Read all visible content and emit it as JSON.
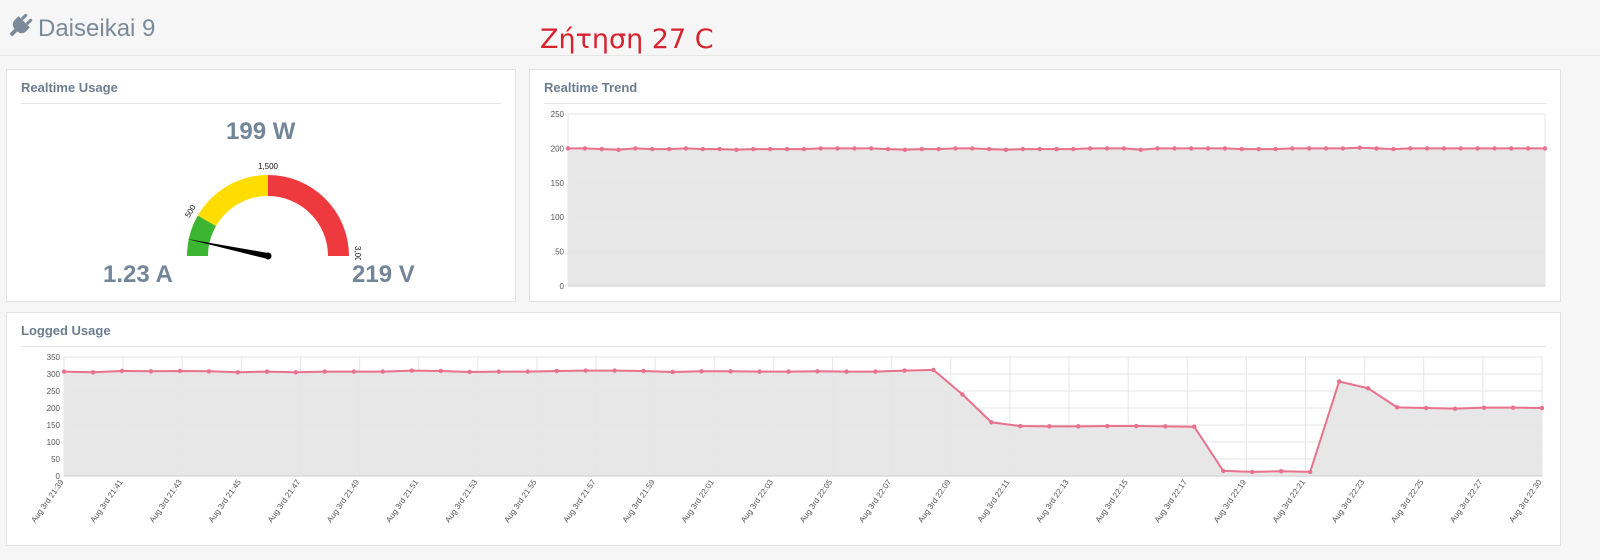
{
  "header": {
    "title": "Daiseikai 9",
    "icon": "plug-icon"
  },
  "annotation": "Ζήτηση 27 C",
  "realtime_usage": {
    "title": "Realtime Usage",
    "power": "199 W",
    "current": "1.23 A",
    "voltage": "219 V",
    "gauge": {
      "min": 0,
      "max": 3000,
      "value": 199,
      "labels": [
        "500",
        "1,500",
        "3,000"
      ],
      "bands": [
        {
          "from": 0,
          "to": 500,
          "color": "#3cb531"
        },
        {
          "from": 500,
          "to": 1500,
          "color": "#ffdd00"
        },
        {
          "from": 1500,
          "to": 3000,
          "color": "#ee3a3f"
        }
      ]
    }
  },
  "realtime_trend": {
    "title": "Realtime Trend"
  },
  "logged_usage": {
    "title": "Logged Usage"
  },
  "colors": {
    "line": "#e8718d",
    "fill": "#e4e4e4",
    "grid": "#e6e6e6",
    "text": "#6b7d8f"
  },
  "chart_data": [
    {
      "type": "area",
      "ylim": [
        0,
        250
      ],
      "y_ticks": [
        "0",
        "50",
        "100",
        "150",
        "200",
        "250"
      ],
      "grid": true,
      "values": [
        200,
        200,
        199,
        198,
        200,
        199,
        199,
        200,
        199,
        199,
        198,
        199,
        199,
        199,
        199,
        200,
        200,
        200,
        200,
        199,
        198,
        199,
        199,
        200,
        200,
        199,
        198,
        199,
        199,
        199,
        199,
        200,
        200,
        200,
        198,
        200,
        200,
        200,
        200,
        200,
        199,
        199,
        199,
        200,
        200,
        200,
        200,
        201,
        200,
        199,
        200,
        200,
        200,
        200,
        200,
        200,
        200,
        200,
        200
      ]
    },
    {
      "type": "area",
      "ylim": [
        0,
        350
      ],
      "y_ticks": [
        "0",
        "50",
        "100",
        "150",
        "200",
        "250",
        "300",
        "350"
      ],
      "grid": true,
      "x_tick_labels": [
        "Aug 3rd 21:39",
        "Aug 3rd 21:41",
        "Aug 3rd 21:43",
        "Aug 3rd 21:45",
        "Aug 3rd 21:47",
        "Aug 3rd 21:49",
        "Aug 3rd 21:51",
        "Aug 3rd 21:53",
        "Aug 3rd 21:55",
        "Aug 3rd 21:57",
        "Aug 3rd 21:59",
        "Aug 3rd 22:01",
        "Aug 3rd 22:03",
        "Aug 3rd 22:05",
        "Aug 3rd 22:07",
        "Aug 3rd 22:09",
        "Aug 3rd 22:11",
        "Aug 3rd 22:13",
        "Aug 3rd 22:15",
        "Aug 3rd 22:17",
        "Aug 3rd 22:19",
        "Aug 3rd 22:21",
        "Aug 3rd 22:23",
        "Aug 3rd 22:25",
        "Aug 3rd 22:27",
        "Aug 3rd 22:30"
      ],
      "values": [
        307,
        305,
        309,
        308,
        309,
        308,
        305,
        307,
        305,
        307,
        307,
        307,
        310,
        309,
        306,
        307,
        307,
        309,
        310,
        310,
        309,
        306,
        308,
        308,
        307,
        307,
        308,
        307,
        307,
        310,
        312,
        240,
        158,
        147,
        146,
        146,
        147,
        147,
        146,
        145,
        15,
        12,
        14,
        12,
        278,
        258,
        202,
        200,
        198,
        201,
        201,
        200
      ]
    }
  ]
}
